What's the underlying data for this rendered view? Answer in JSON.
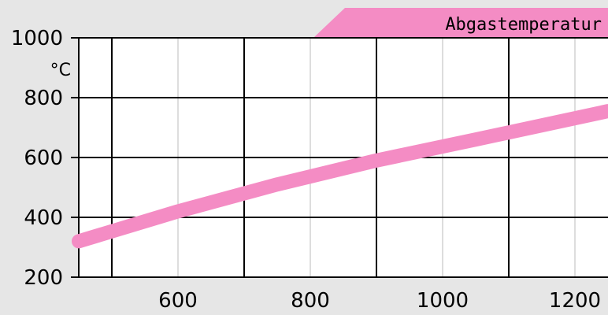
{
  "chart_data": {
    "type": "line",
    "title": "Abgastemperatur",
    "ylabel": "°C",
    "xlabel": "",
    "xlim": [
      450,
      1250
    ],
    "ylim": [
      200,
      1000
    ],
    "x_ticks": [
      600,
      800,
      1000,
      1200
    ],
    "y_ticks": [
      200,
      400,
      600,
      800,
      1000
    ],
    "grid": true,
    "series": [
      {
        "color": "#f48cc4",
        "x": [
          450,
          600,
          750,
          900,
          1050,
          1250
        ],
        "y": [
          320,
          420,
          510,
          590,
          660,
          755
        ]
      }
    ]
  }
}
